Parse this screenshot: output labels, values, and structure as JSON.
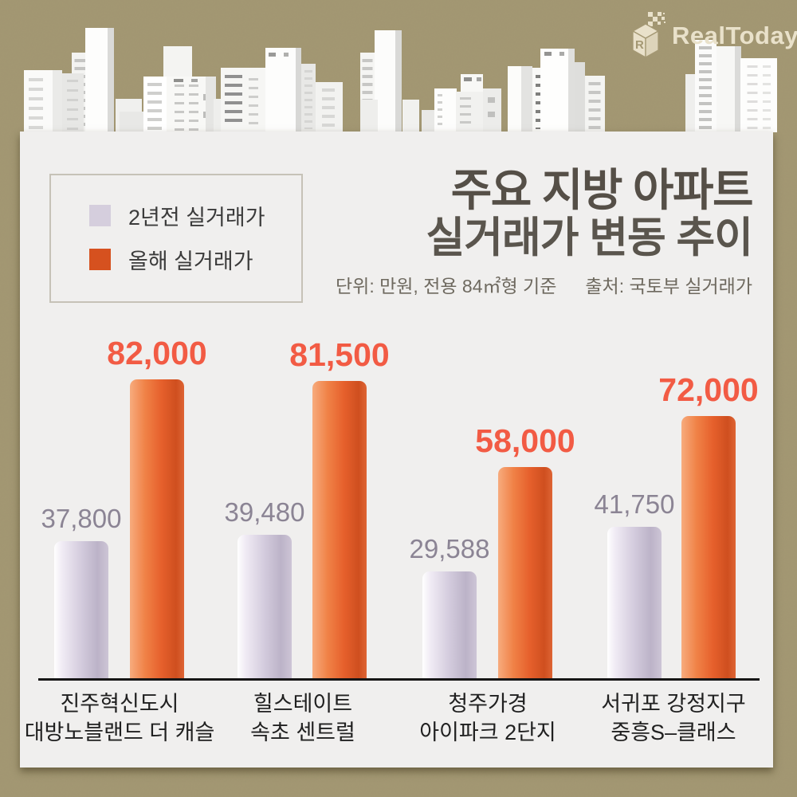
{
  "logo": {
    "brand": "RealToday"
  },
  "header": {
    "title_line1": "주요 지방 아파트",
    "title_line2": "실거래가 변동 추이",
    "unit_note": "단위: 만원, 전용 84㎡형 기준",
    "source_note": "출처: 국토부 실거래가"
  },
  "legend": {
    "prev_label": "2년전 실거래가",
    "curr_label": "올해 실거래가",
    "prev_color": "#d5cedd",
    "curr_color": "#d6511f"
  },
  "chart_data": {
    "type": "bar",
    "title": "주요 지방 아파트 실거래가 변동 추이",
    "unit": "만원",
    "basis": "전용 84㎡형 기준",
    "source": "국토부 실거래가",
    "legend_position": "top-left",
    "grid": false,
    "ylim": [
      0,
      90000
    ],
    "categories": [
      "진주혁신도시 대방노블랜드 더 캐슬",
      "힐스테이트 속초 센트럴",
      "청주가경 아이파크 2단지",
      "서귀포 강정지구 중흥S–클래스"
    ],
    "series": [
      {
        "name": "2년전 실거래가",
        "color": "#d5cedd",
        "values": [
          37800,
          39480,
          29588,
          41750
        ]
      },
      {
        "name": "올해 실거래가",
        "color": "#e0592a",
        "values": [
          82000,
          81500,
          58000,
          72000
        ]
      }
    ],
    "value_text_colors": {
      "prev": "#8b8494",
      "curr": "#f25b44"
    },
    "groups": [
      {
        "cat_line1": "진주혁신도시",
        "cat_line2": "대방노블랜드 더 캐슬",
        "prev": 37800,
        "prev_label": "37,800",
        "curr": 82000,
        "curr_label": "82,000"
      },
      {
        "cat_line1": "힐스테이트",
        "cat_line2": "속초 센트럴",
        "prev": 39480,
        "prev_label": "39,480",
        "curr": 81500,
        "curr_label": "81,500"
      },
      {
        "cat_line1": "청주가경",
        "cat_line2": "아이파크 2단지",
        "prev": 29588,
        "prev_label": "29,588",
        "curr": 58000,
        "curr_label": "58,000"
      },
      {
        "cat_line1": "서귀포 강정지구",
        "cat_line2": "중흥S–클래스",
        "prev": 41750,
        "prev_label": "41,750",
        "curr": 72000,
        "curr_label": "72,000"
      }
    ]
  }
}
